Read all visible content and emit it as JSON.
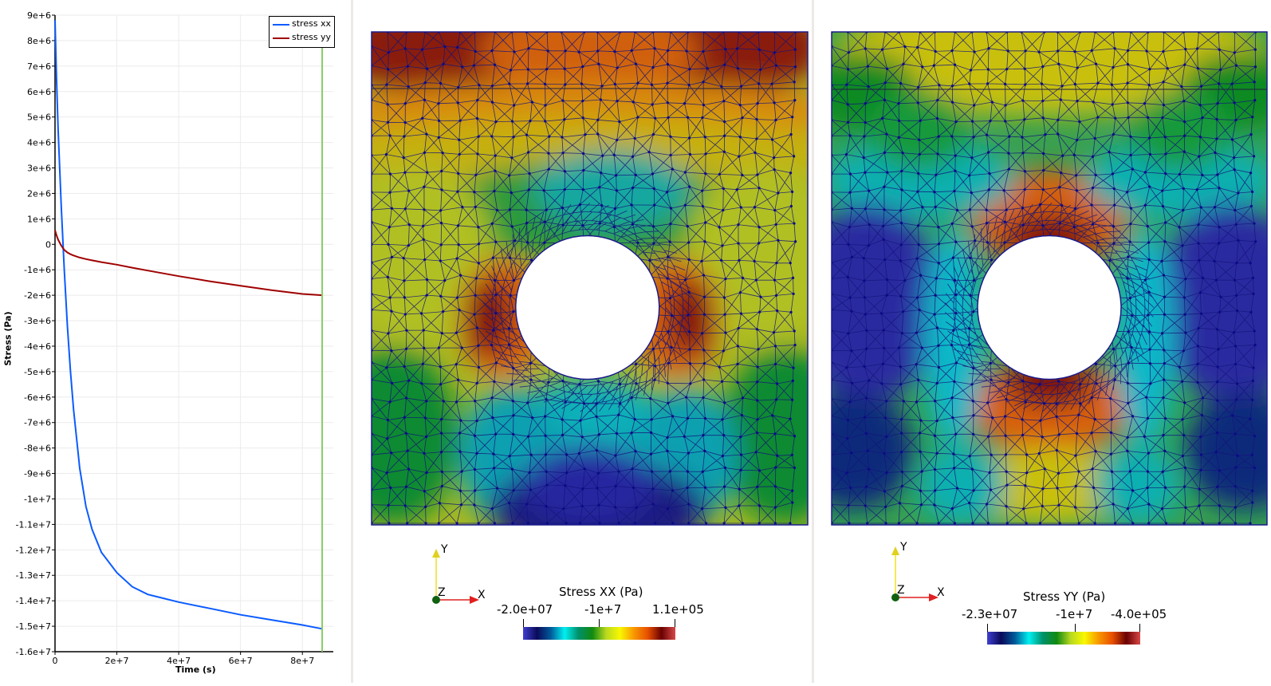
{
  "layout": {
    "views": [
      "line-chart-view",
      "stress-xx-render-view",
      "stress-yy-render-view"
    ]
  },
  "chart": {
    "legend": [
      {
        "label": "stress xx",
        "color": "#0a5bff"
      },
      {
        "label": "stress yy",
        "color": "#a00000"
      }
    ],
    "y_axis_title": "Stress (Pa)",
    "x_axis_title": "Time (s)",
    "y_ticks": [
      "9e+6",
      "8e+6",
      "7e+6",
      "6e+6",
      "5e+6",
      "4e+6",
      "3e+6",
      "2e+6",
      "1e+6",
      "0",
      "-1e+6",
      "-2e+6",
      "-3e+6",
      "-4e+6",
      "-5e+6",
      "-6e+6",
      "-7e+6",
      "-8e+6",
      "-9e+6",
      "-1e+7",
      "-1.1e+7",
      "-1.2e+7",
      "-1.3e+7",
      "-1.4e+7",
      "-1.5e+7",
      "-1.6e+7"
    ],
    "x_ticks": [
      "0",
      "2e+7",
      "4e+7",
      "6e+7",
      "8e+7"
    ],
    "time_cursor_color": "#88cc66"
  },
  "chart_data": {
    "type": "line",
    "title": "",
    "xlabel": "Time (s)",
    "ylabel": "Stress (Pa)",
    "xlim": [
      0,
      90000000.0
    ],
    "ylim": [
      -16000000.0,
      9000000.0
    ],
    "grid": true,
    "legend_position": "top-right",
    "time_cursor_x": 86400000.0,
    "x": [
      0,
      500000.0,
      1000000.0,
      2000000.0,
      3000000.0,
      4000000.0,
      5000000.0,
      6000000.0,
      8000000.0,
      10000000.0,
      12000000.0,
      15000000.0,
      20000000.0,
      25000000.0,
      30000000.0,
      35000000.0,
      40000000.0,
      50000000.0,
      60000000.0,
      70000000.0,
      80000000.0,
      86400000.0
    ],
    "series": [
      {
        "name": "stress xx",
        "color": "#0a5bff",
        "values": [
          8800000.0,
          6500000.0,
          4500000.0,
          1500000.0,
          -1000000.0,
          -3200000.0,
          -5000000.0,
          -6500000.0,
          -8800000.0,
          -10300000.0,
          -11200000.0,
          -12100000.0,
          -12900000.0,
          -13450000.0,
          -13750000.0,
          -13900000.0,
          -14050000.0,
          -14300000.0,
          -14550000.0,
          -14750000.0,
          -14950000.0,
          -15100000.0
        ]
      },
      {
        "name": "stress yy",
        "color": "#a00000",
        "values": [
          550000.0,
          350000.0,
          180000.0,
          -50000.0,
          -220000.0,
          -320000.0,
          -390000.0,
          -440000.0,
          -520000.0,
          -580000.0,
          -630000.0,
          -700000.0,
          -800000.0,
          -920000.0,
          -1030000.0,
          -1140000.0,
          -1250000.0,
          -1450000.0,
          -1630000.0,
          -1800000.0,
          -1950000.0,
          -2000000.0
        ]
      }
    ]
  },
  "views": {
    "xx": {
      "title": "Stress XX (Pa)",
      "range_min_label": "-2.0e+07",
      "range_mid_label": "-1e+7",
      "range_max_label": "1.1e+05",
      "range": [
        -20000000.0,
        110000.0
      ]
    },
    "yy": {
      "title": "Stress YY (Pa)",
      "range_min_label": "-2.3e+07",
      "range_mid_label": "-1e+7",
      "range_max_label": "-4.0e+05",
      "range": [
        -23000000.0,
        -400000.0
      ]
    }
  },
  "orientation_axes": {
    "x": "X",
    "y": "Y",
    "z": "Z",
    "x_color": "#e02020",
    "y_color": "#f0e020",
    "z_color": "#106010"
  },
  "colormap": [
    "#3f3fd0",
    "#0a0a5a",
    "#005a9a",
    "#00f0f0",
    "#00906a",
    "#108a10",
    "#b8d820",
    "#f8f800",
    "#f89800",
    "#e85000",
    "#6a0000",
    "#d84848"
  ]
}
